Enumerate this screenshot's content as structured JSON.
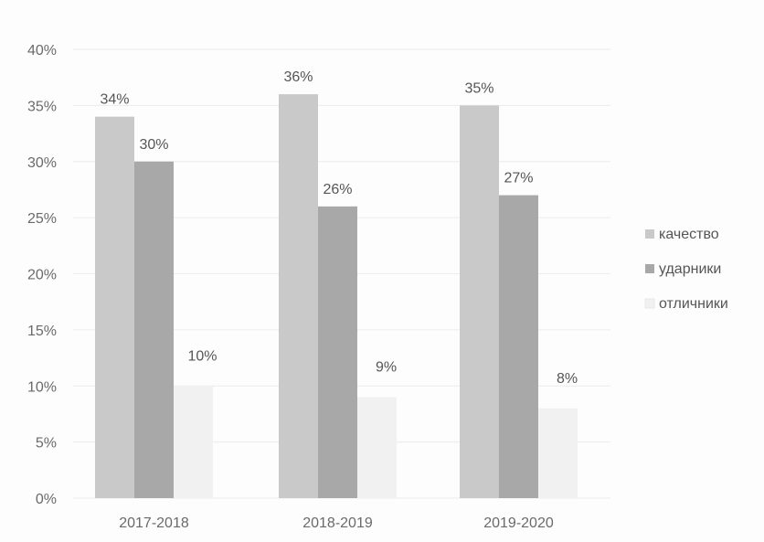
{
  "chart_data": {
    "type": "bar",
    "categories": [
      "2017-2018",
      "2018-2019",
      "2019-2020"
    ],
    "series": [
      {
        "name": "качество",
        "values": [
          34,
          36,
          35
        ],
        "color": "#c9c9c9"
      },
      {
        "name": "ударники",
        "values": [
          30,
          26,
          27
        ],
        "color": "#a8a8a8"
      },
      {
        "name": "отличники",
        "values": [
          10,
          9,
          8
        ],
        "color": "#f1f1f1"
      }
    ],
    "data_labels": [
      [
        "34%",
        "36%",
        "35%"
      ],
      [
        "30%",
        "26%",
        "27%"
      ],
      [
        "10%",
        "9%",
        "8%"
      ]
    ],
    "y_ticks": [
      "0%",
      "5%",
      "10%",
      "15%",
      "20%",
      "25%",
      "30%",
      "35%",
      "40%"
    ],
    "ylim": [
      0,
      40
    ],
    "ystep": 5,
    "grid": true,
    "legend_position": "right"
  }
}
